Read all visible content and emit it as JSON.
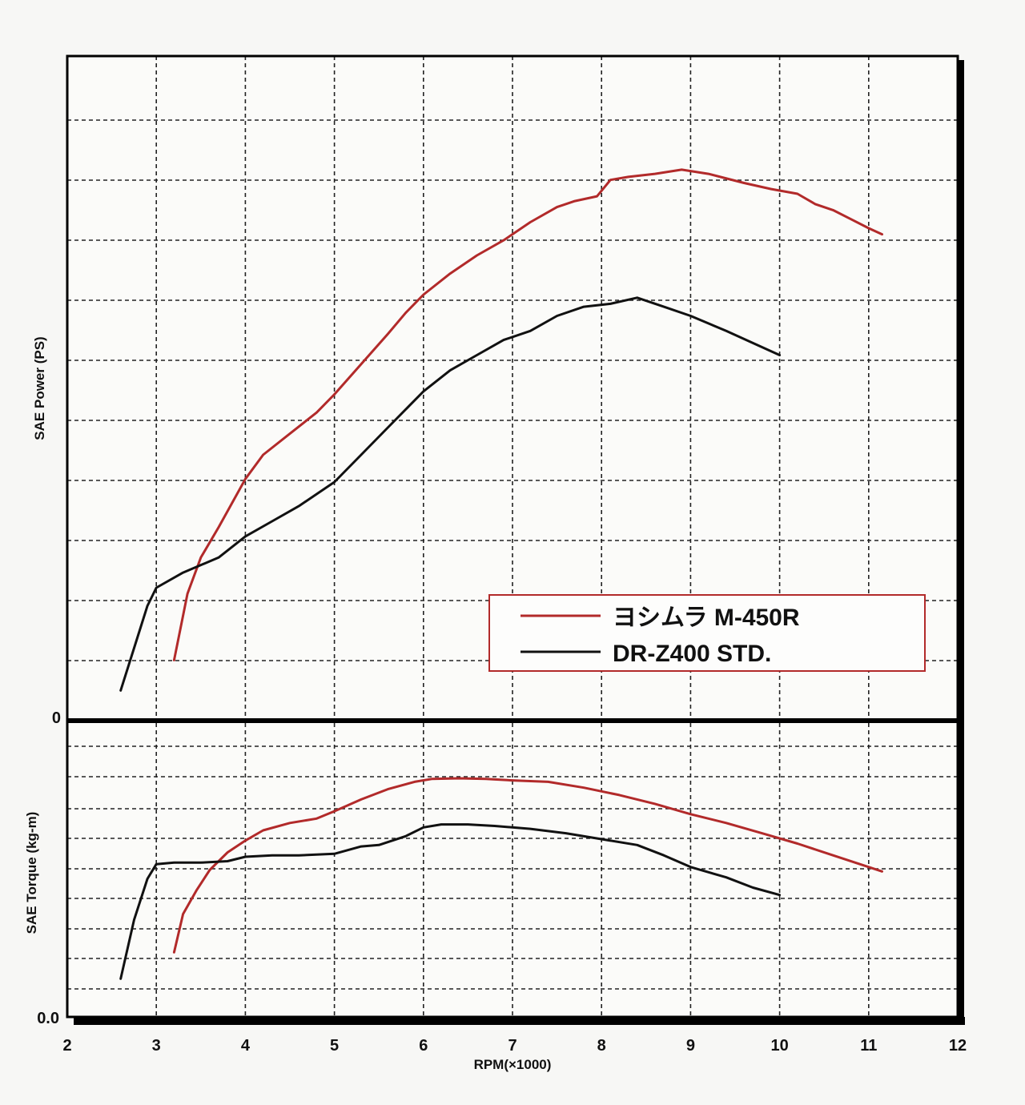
{
  "chart_data": [
    {
      "type": "line",
      "ylabel": "SAE Power (PS)",
      "y_tick_label": "0",
      "xlim": [
        2,
        12
      ],
      "ylim": [
        0,
        11
      ],
      "grid": true,
      "legend": {
        "placement": "bottom-right"
      },
      "series": [
        {
          "name": "ヨシムラ M-450R",
          "color": "#b22a2a",
          "x": [
            3.2,
            3.35,
            3.5,
            3.7,
            3.85,
            4.0,
            4.2,
            4.5,
            4.8,
            5.0,
            5.3,
            5.6,
            5.8,
            6.0,
            6.3,
            6.6,
            6.9,
            7.2,
            7.5,
            7.7,
            7.95,
            8.1,
            8.3,
            8.6,
            8.9,
            9.2,
            9.6,
            9.9,
            10.2,
            10.4,
            10.6,
            10.8,
            11.0,
            11.15
          ],
          "y": [
            1.0,
            2.1,
            2.7,
            3.2,
            3.6,
            4.0,
            4.4,
            4.75,
            5.1,
            5.4,
            5.9,
            6.4,
            6.75,
            7.05,
            7.4,
            7.7,
            7.95,
            8.25,
            8.5,
            8.6,
            8.68,
            8.95,
            9.0,
            9.05,
            9.12,
            9.05,
            8.9,
            8.8,
            8.72,
            8.55,
            8.45,
            8.3,
            8.15,
            8.05
          ]
        },
        {
          "name": "DR-Z400 STD.",
          "color": "#111111",
          "x": [
            2.6,
            2.75,
            2.9,
            3.0,
            3.3,
            3.7,
            4.0,
            4.3,
            4.6,
            5.0,
            5.3,
            5.6,
            6.0,
            6.3,
            6.6,
            6.9,
            7.2,
            7.5,
            7.8,
            8.1,
            8.4,
            8.7,
            9.0,
            9.4,
            9.7,
            10.0
          ],
          "y": [
            0.5,
            1.2,
            1.9,
            2.2,
            2.45,
            2.7,
            3.05,
            3.3,
            3.55,
            3.95,
            4.4,
            4.85,
            5.45,
            5.8,
            6.05,
            6.3,
            6.45,
            6.7,
            6.85,
            6.9,
            7.0,
            6.85,
            6.7,
            6.45,
            6.25,
            6.05
          ]
        }
      ]
    },
    {
      "type": "line",
      "ylabel": "SAE Torque (kg-m)",
      "xlabel": "RPM(×1000)",
      "y_tick_label": "0.0",
      "categories": [
        "2",
        "3",
        "4",
        "5",
        "6",
        "7",
        "8",
        "9",
        "10",
        "11",
        "12"
      ],
      "xlim": [
        2,
        12
      ],
      "ylim": [
        0,
        10
      ],
      "grid": true,
      "series": [
        {
          "name": "ヨシムラ M-450R",
          "color": "#b22a2a",
          "x": [
            3.2,
            3.3,
            3.45,
            3.6,
            3.8,
            4.0,
            4.2,
            4.5,
            4.8,
            5.0,
            5.3,
            5.6,
            5.9,
            6.1,
            6.4,
            6.7,
            7.0,
            7.4,
            7.8,
            8.2,
            8.6,
            9.0,
            9.4,
            9.8,
            10.2,
            10.6,
            11.0,
            11.15
          ],
          "y": [
            2.2,
            3.5,
            4.3,
            5.0,
            5.6,
            6.0,
            6.35,
            6.6,
            6.75,
            7.0,
            7.4,
            7.75,
            8.0,
            8.1,
            8.12,
            8.1,
            8.05,
            8.0,
            7.8,
            7.55,
            7.25,
            6.9,
            6.6,
            6.25,
            5.9,
            5.5,
            5.1,
            4.95
          ]
        },
        {
          "name": "DR-Z400 STD.",
          "color": "#111111",
          "x": [
            2.6,
            2.75,
            2.9,
            3.0,
            3.2,
            3.5,
            3.8,
            4.0,
            4.3,
            4.6,
            5.0,
            5.3,
            5.5,
            5.8,
            6.0,
            6.2,
            6.5,
            6.8,
            7.2,
            7.6,
            8.0,
            8.4,
            8.7,
            9.0,
            9.4,
            9.7,
            10.0
          ],
          "y": [
            1.3,
            3.3,
            4.7,
            5.2,
            5.25,
            5.25,
            5.3,
            5.45,
            5.5,
            5.5,
            5.55,
            5.8,
            5.85,
            6.15,
            6.45,
            6.55,
            6.55,
            6.5,
            6.4,
            6.25,
            6.05,
            5.85,
            5.5,
            5.1,
            4.75,
            4.4,
            4.15
          ]
        }
      ]
    }
  ],
  "colors": {
    "red_series": "#b22a2a",
    "black_series": "#111111",
    "frame": "#000000"
  }
}
